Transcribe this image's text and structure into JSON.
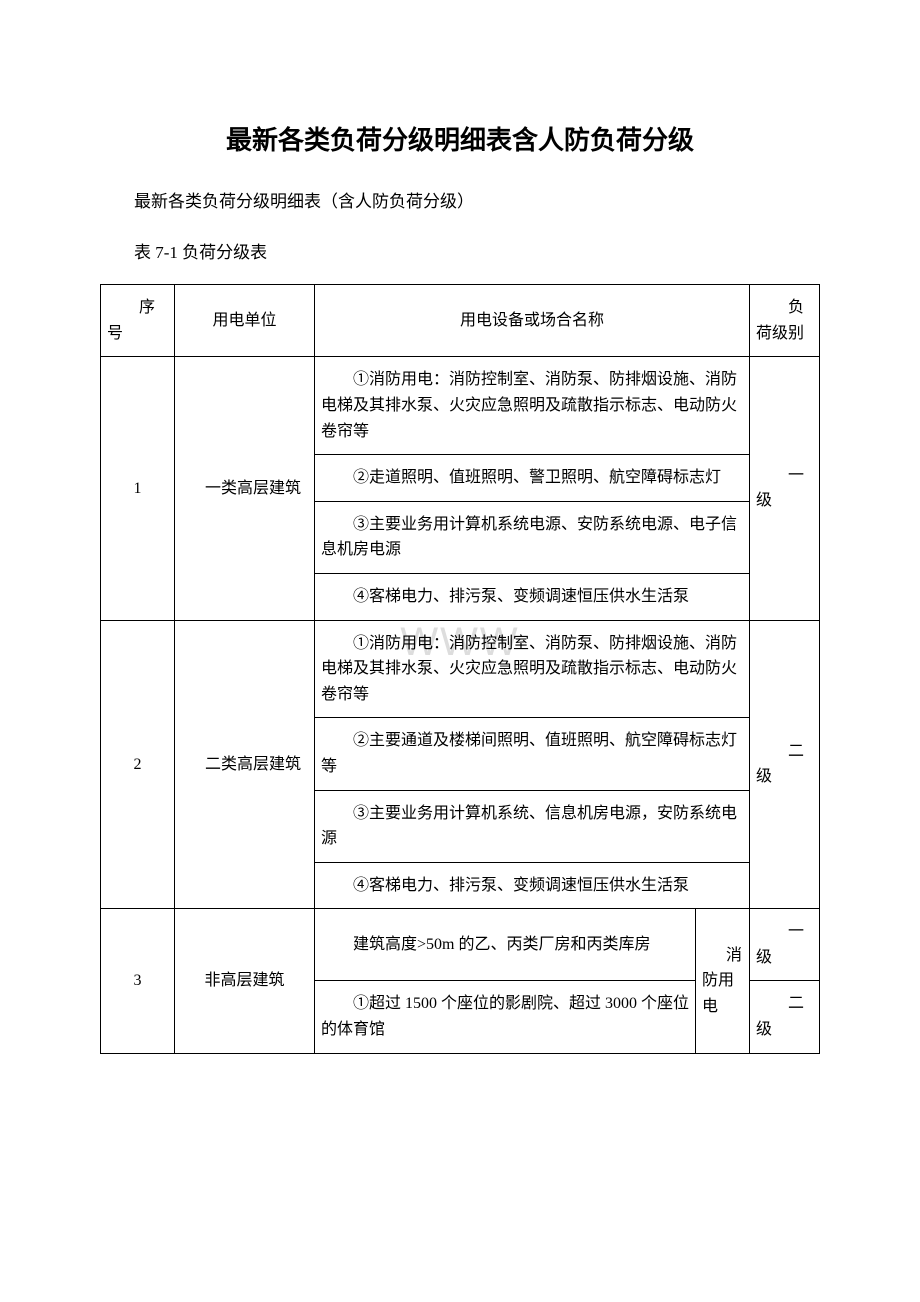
{
  "title": "最新各类负荷分级明细表含人防负荷分级",
  "subtitle": "最新各类负荷分级明细表（含人防负荷分级）",
  "table_caption": "表 7-1 负荷分级表",
  "watermark": "WWW",
  "header": {
    "seq": "序号",
    "unit": "用电单位",
    "content": "用电设备或场合名称",
    "level": "负荷级别"
  },
  "rows": [
    {
      "seq": "1",
      "unit": "一类高层建筑",
      "items": [
        "①消防用电：消防控制室、消防泵、防排烟设施、消防电梯及其排水泵、火灾应急照明及疏散指示标志、电动防火卷帘等",
        "②走道照明、值班照明、警卫照明、航空障碍标志灯",
        "③主要业务用计算机系统电源、安防系统电源、电子信息机房电源",
        "④客梯电力、排污泵、变频调速恒压供水生活泵"
      ],
      "level": "一级"
    },
    {
      "seq": "2",
      "unit": "二类高层建筑",
      "items": [
        "①消防用电：消防控制室、消防泵、防排烟设施、消防电梯及其排水泵、火灾应急照明及疏散指示标志、电动防火卷帘等",
        "②主要通道及楼梯间照明、值班照明、航空障碍标志灯等",
        "③主要业务用计算机系统、信息机房电源，安防系统电源",
        "④客梯电力、排污泵、变频调速恒压供水生活泵"
      ],
      "level": "二级"
    },
    {
      "seq": "3",
      "unit": "非高层建筑",
      "side": "消防用电",
      "items": [
        "建筑高度>50m 的乙、丙类厂房和丙类库房",
        "①超过 1500 个座位的影剧院、超过 3000 个座位的体育馆"
      ],
      "levels": [
        "一级",
        "二级"
      ]
    }
  ]
}
